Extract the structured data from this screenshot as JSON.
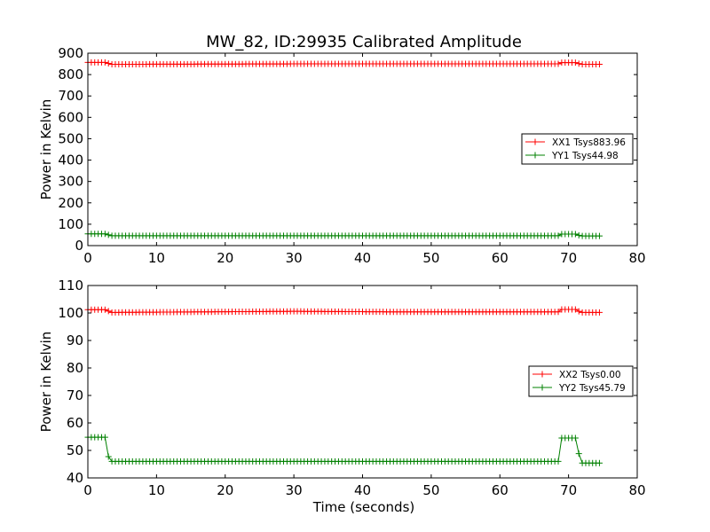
{
  "figure_title": "MW_82, ID:29935 Calibrated Amplitude",
  "xlabel": "Time (seconds)",
  "colors": {
    "red": "#ff0000",
    "green": "#008000"
  },
  "chart_data": [
    {
      "type": "line",
      "title": "MW_82, ID:29935 Calibrated Amplitude",
      "xlabel": "",
      "ylabel": "Power in Kelvin",
      "xlim": [
        0,
        80
      ],
      "ylim": [
        0,
        900
      ],
      "xticks": [
        "0",
        "10",
        "20",
        "30",
        "40",
        "50",
        "60",
        "70",
        "80"
      ],
      "yticks": [
        "0",
        "100",
        "200",
        "300",
        "400",
        "500",
        "600",
        "700",
        "800",
        "900"
      ],
      "legend": "center-right",
      "markers": "+",
      "x_range": [
        0,
        74.5
      ],
      "n_points": 150,
      "series": [
        {
          "name": "XX1 Tsys883.96",
          "color": "#ff0000",
          "points": [
            [
              0,
              857
            ],
            [
              2.8,
              857
            ],
            [
              3.2,
              848
            ],
            [
              30,
              850
            ],
            [
              45,
              850
            ],
            [
              68.5,
              850
            ],
            [
              69,
              856
            ],
            [
              71,
              856
            ],
            [
              71.8,
              848
            ],
            [
              74.5,
              848
            ]
          ]
        },
        {
          "name": "YY1 Tsys44.98",
          "color": "#008000",
          "points": [
            [
              0,
              55
            ],
            [
              2.8,
              55
            ],
            [
              3.2,
              46
            ],
            [
              68.5,
              46
            ],
            [
              69,
              54
            ],
            [
              71,
              54
            ],
            [
              71.8,
              45
            ],
            [
              74.5,
              45
            ]
          ]
        }
      ]
    },
    {
      "type": "line",
      "title": "",
      "xlabel": "Time (seconds)",
      "ylabel": "Power in Kelvin",
      "xlim": [
        0,
        80
      ],
      "ylim": [
        40,
        110
      ],
      "xticks": [
        "0",
        "10",
        "20",
        "30",
        "40",
        "50",
        "60",
        "70",
        "80"
      ],
      "yticks": [
        "40",
        "50",
        "60",
        "70",
        "80",
        "90",
        "100",
        "110"
      ],
      "legend": "center-right",
      "markers": "+",
      "x_range": [
        0,
        74.5
      ],
      "n_points": 150,
      "series": [
        {
          "name": "XX2 Tsys0.00",
          "color": "#ff0000",
          "points": [
            [
              0,
              101.2
            ],
            [
              2.8,
              101.2
            ],
            [
              3.2,
              100.2
            ],
            [
              30,
              100.6
            ],
            [
              45,
              100.4
            ],
            [
              68.5,
              100.4
            ],
            [
              69,
              101.3
            ],
            [
              71,
              101.3
            ],
            [
              71.8,
              100.2
            ],
            [
              74.5,
              100.2
            ]
          ]
        },
        {
          "name": "YY2 Tsys45.79",
          "color": "#008000",
          "points": [
            [
              0,
              54.8
            ],
            [
              2.6,
              54.8
            ],
            [
              3.1,
              46
            ],
            [
              68.5,
              46
            ],
            [
              69,
              54.5
            ],
            [
              71,
              54.5
            ],
            [
              71.8,
              45.4
            ],
            [
              74.5,
              45.4
            ]
          ]
        }
      ]
    }
  ]
}
